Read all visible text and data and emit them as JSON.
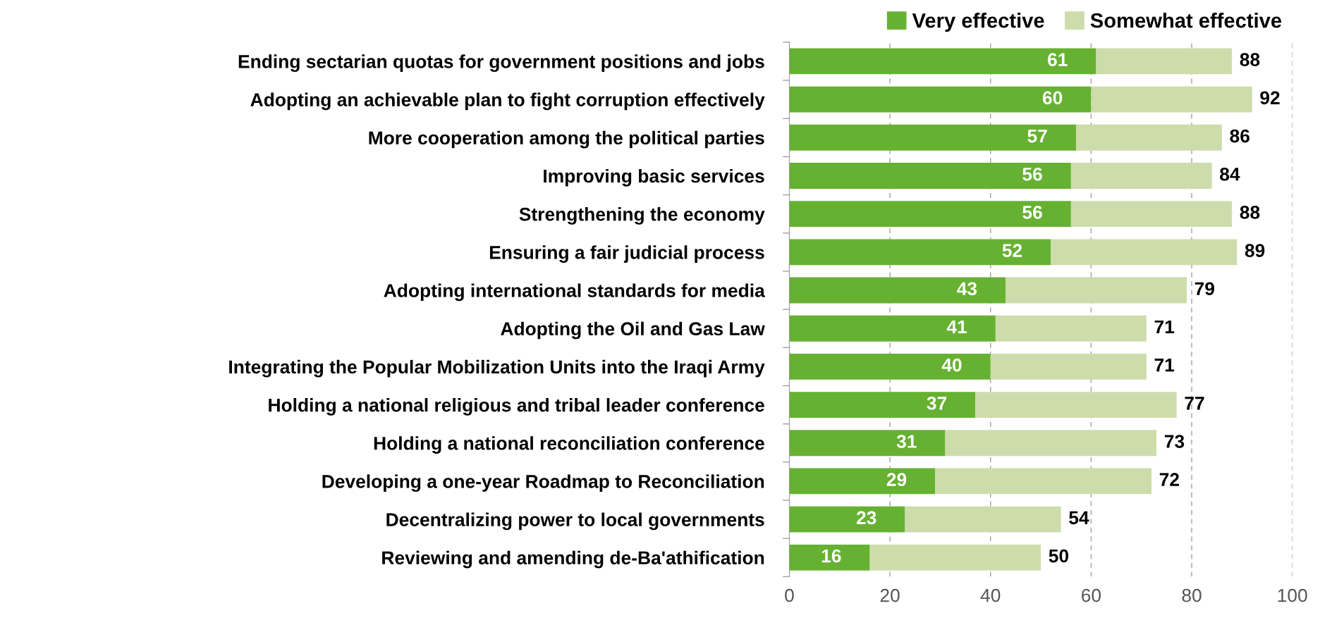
{
  "chart_data": {
    "type": "bar",
    "orientation": "horizontal",
    "stacked": true,
    "categories": [
      "Ending sectarian quotas for government positions and jobs",
      "Adopting an achievable plan to fight corruption effectively",
      "More cooperation among the political parties",
      "Improving basic services",
      "Strengthening the economy",
      "Ensuring a fair judicial process",
      "Adopting international standards for media",
      "Adopting the Oil and Gas Law",
      "Integrating the Popular Mobilization Units into the Iraqi Army",
      "Holding a national religious and tribal leader conference",
      "Holding a national reconciliation conference",
      "Developing a one-year Roadmap to Reconciliation",
      "Decentralizing power to local governments",
      "Reviewing and amending de-Ba'athification"
    ],
    "series": [
      {
        "name": "Very effective",
        "color": "#66b132",
        "values": [
          61,
          60,
          57,
          56,
          56,
          52,
          43,
          41,
          40,
          37,
          31,
          29,
          23,
          16
        ],
        "value_labels": [
          "61",
          "60",
          "57",
          "56",
          "56",
          "52",
          "43",
          "41",
          "40",
          "37",
          "31",
          "29",
          "23",
          "16"
        ]
      },
      {
        "name": "Somewhat effective",
        "color": "#cddcab",
        "values": [
          27,
          32,
          29,
          28,
          32,
          37,
          36,
          30,
          31,
          40,
          42,
          43,
          31,
          34
        ]
      }
    ],
    "totals": [
      "88",
      "92",
      "86",
      "84",
      "88",
      "89",
      "79",
      "71",
      "71",
      "77",
      "73",
      "72",
      "54",
      "50"
    ],
    "xlim": [
      0,
      100
    ],
    "xticks": [
      0,
      20,
      40,
      60,
      80,
      100
    ],
    "grid": "x",
    "legend": "top right"
  }
}
